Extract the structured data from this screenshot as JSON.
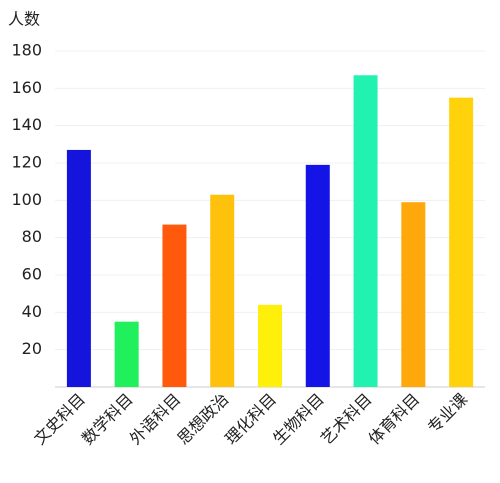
{
  "chart_data": {
    "type": "bar",
    "y_axis_label": "人数",
    "categories": [
      "文史科目",
      "数学科目",
      "外语科目",
      "思想政治",
      "理化科目",
      "生物科目",
      "艺术科目",
      "体育科目",
      "专业课"
    ],
    "values": [
      127,
      35,
      87,
      103,
      44,
      119,
      167,
      99,
      155
    ],
    "colors": [
      "#1414dc",
      "#1ff05c",
      "#ff5a0c",
      "#ffc20c",
      "#fff00c",
      "#1414e6",
      "#22f2b0",
      "#ffa80c",
      "#ffd20c"
    ],
    "ylim": [
      0,
      180
    ],
    "yticks": [
      20,
      40,
      60,
      80,
      100,
      120,
      140,
      160,
      180
    ],
    "grid": true
  }
}
